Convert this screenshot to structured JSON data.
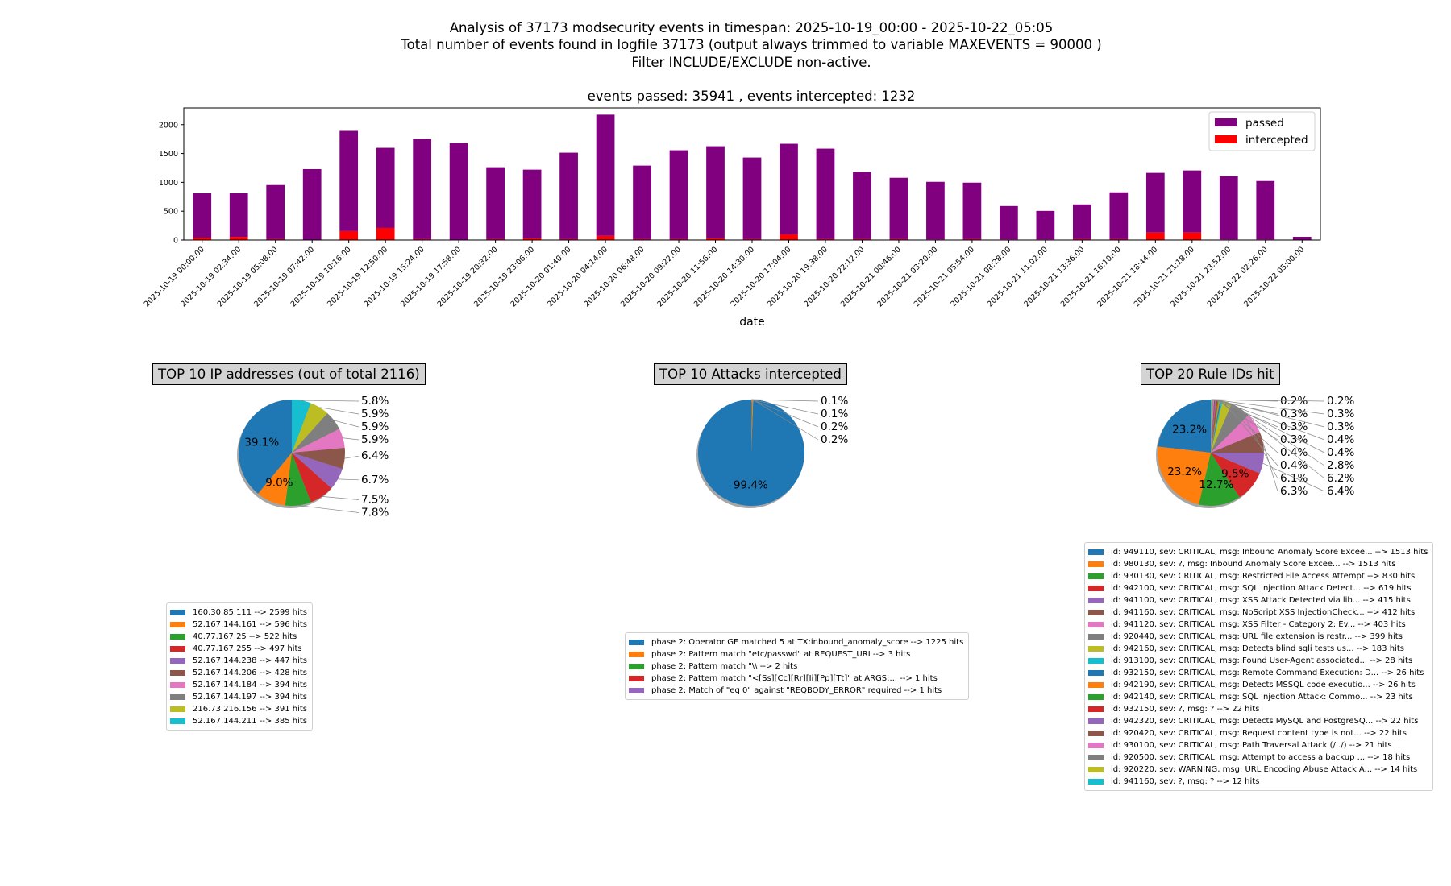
{
  "header": {
    "line1": "Analysis of 37173 modsecurity events in timespan: 2025-10-19_00:00 - 2025-10-22_05:05",
    "line2": "Total number of events found in logfile 37173 (output always trimmed to variable MAXEVENTS = 90000 )",
    "line3": "Filter INCLUDE/EXCLUDE non-active."
  },
  "chart_data": [
    {
      "type": "bar",
      "stacked": true,
      "title": "events passed: 35941 , events intercepted: 1232",
      "xlabel": "date",
      "ylabel": "",
      "ylim": [
        0,
        2290
      ],
      "yticks": [
        0,
        500,
        1000,
        1500,
        2000
      ],
      "legend_placement": "top-right",
      "categories": [
        "2025-10-19 00:00:00",
        "2025-10-19 02:34:00",
        "2025-10-19 05:08:00",
        "2025-10-19 07:42:00",
        "2025-10-19 10:16:00",
        "2025-10-19 12:50:00",
        "2025-10-19 15:24:00",
        "2025-10-19 17:58:00",
        "2025-10-19 20:32:00",
        "2025-10-19 23:06:00",
        "2025-10-20 01:40:00",
        "2025-10-20 04:14:00",
        "2025-10-20 06:48:00",
        "2025-10-20 09:22:00",
        "2025-10-20 11:56:00",
        "2025-10-20 14:30:00",
        "2025-10-20 17:04:00",
        "2025-10-20 19:38:00",
        "2025-10-20 22:12:00",
        "2025-10-21 00:46:00",
        "2025-10-21 03:20:00",
        "2025-10-21 05:54:00",
        "2025-10-21 08:28:00",
        "2025-10-21 11:02:00",
        "2025-10-21 13:36:00",
        "2025-10-21 16:10:00",
        "2025-10-21 18:44:00",
        "2025-10-21 21:18:00",
        "2025-10-21 23:52:00",
        "2025-10-22 02:26:00",
        "2025-10-22 05:00:00"
      ],
      "series": [
        {
          "name": "intercepted",
          "color": "#ff0000",
          "values": [
            40,
            55,
            15,
            5,
            155,
            210,
            15,
            5,
            15,
            30,
            15,
            72,
            15,
            15,
            30,
            15,
            100,
            15,
            15,
            15,
            10,
            15,
            10,
            10,
            15,
            15,
            130,
            130,
            10,
            10,
            0
          ]
        },
        {
          "name": "passed",
          "color": "#800080",
          "values": [
            770,
            755,
            938,
            1224,
            1737,
            1388,
            1737,
            1677,
            1247,
            1190,
            1499,
            2101,
            1275,
            1541,
            1596,
            1415,
            1568,
            1569,
            1163,
            1064,
            999,
            980,
            579,
            495,
            602,
            812,
            1034,
            1076,
            1097,
            1013,
            56
          ]
        }
      ]
    },
    {
      "type": "pie",
      "title": "TOP 10 IP addresses (out of total 2116)",
      "labels": [
        "160.30.85.111 --> 2599 hits",
        "52.167.144.161 --> 596 hits",
        "40.77.167.25 --> 522 hits",
        "40.77.167.255 --> 497 hits",
        "52.167.144.238 --> 447 hits",
        "52.167.144.206 --> 428 hits",
        "52.167.144.184 --> 394 hits",
        "52.167.144.197 --> 394 hits",
        "216.73.216.156 --> 391 hits",
        "52.167.144.211 --> 385 hits"
      ],
      "values": [
        2599,
        596,
        522,
        497,
        447,
        428,
        394,
        394,
        391,
        385
      ]
    },
    {
      "type": "pie",
      "title": "TOP 10 Attacks intercepted",
      "labels": [
        "phase 2: Operator GE matched 5 at TX:inbound_anomaly_score --> 1225 hits",
        "phase 2: Pattern match \"etc/passwd\" at REQUEST_URI --> 3 hits",
        "phase 2: Pattern match \"\\\\ --> 2 hits",
        "phase 2: Pattern match \"<[Ss][Cc][Rr][Ii][Pp][Tt]\" at ARGS:... --> 1 hits",
        "phase 2: Match of \"eq 0\" against \"REQBODY_ERROR\" required --> 1 hits"
      ],
      "values": [
        1225,
        3,
        2,
        1,
        1
      ]
    },
    {
      "type": "pie",
      "title": "TOP 20 Rule IDs hit",
      "labels": [
        "id: 949110, sev: CRITICAL, msg: Inbound Anomaly Score Excee... --> 1513 hits",
        "id: 980130, sev: ?, msg: Inbound Anomaly Score Excee... --> 1513 hits",
        "id: 930130, sev: CRITICAL, msg: Restricted File Access Attempt --> 830 hits",
        "id: 942100, sev: CRITICAL, msg: SQL Injection Attack Detect... --> 619 hits",
        "id: 941100, sev: CRITICAL, msg: XSS Attack Detected via lib... --> 415 hits",
        "id: 941160, sev: CRITICAL, msg: NoScript XSS InjectionCheck... --> 412 hits",
        "id: 941120, sev: CRITICAL, msg: XSS Filter - Category 2: Ev... --> 403 hits",
        "id: 920440, sev: CRITICAL, msg: URL file extension is restr... --> 399 hits",
        "id: 942160, sev: CRITICAL, msg: Detects blind sqli tests us... --> 183 hits",
        "id: 913100, sev: CRITICAL, msg: Found User-Agent associated... --> 28 hits",
        "id: 932150, sev: CRITICAL, msg: Remote Command Execution: D... --> 26 hits",
        "id: 942190, sev: CRITICAL, msg: Detects MSSQL code executio... --> 26 hits",
        "id: 942140, sev: CRITICAL, msg: SQL Injection Attack: Commo... --> 23 hits",
        "id: 932150, sev: ?, msg: ? --> 22 hits",
        "id: 942320, sev: CRITICAL, msg: Detects MySQL and PostgreSQ... --> 22 hits",
        "id: 920420, sev: CRITICAL, msg: Request content type is not... --> 22 hits",
        "id: 930100, sev: CRITICAL, msg: Path Traversal Attack (/../) --> 21 hits",
        "id: 920500, sev: CRITICAL, msg: Attempt to access a backup ... --> 18 hits",
        "id: 920220, sev: WARNING, msg: URL Encoding Abuse Attack A... --> 14 hits",
        "id: 941160, sev: ?, msg: ? --> 12 hits"
      ],
      "values": [
        1513,
        1513,
        830,
        619,
        415,
        412,
        403,
        399,
        183,
        28,
        26,
        26,
        23,
        22,
        22,
        22,
        21,
        18,
        14,
        12
      ]
    }
  ],
  "palette": [
    "#1f77b4",
    "#ff7f0e",
    "#2ca02c",
    "#d62728",
    "#9467bd",
    "#8c564b",
    "#e377c2",
    "#7f7f7f",
    "#bcbd22",
    "#17becf"
  ]
}
